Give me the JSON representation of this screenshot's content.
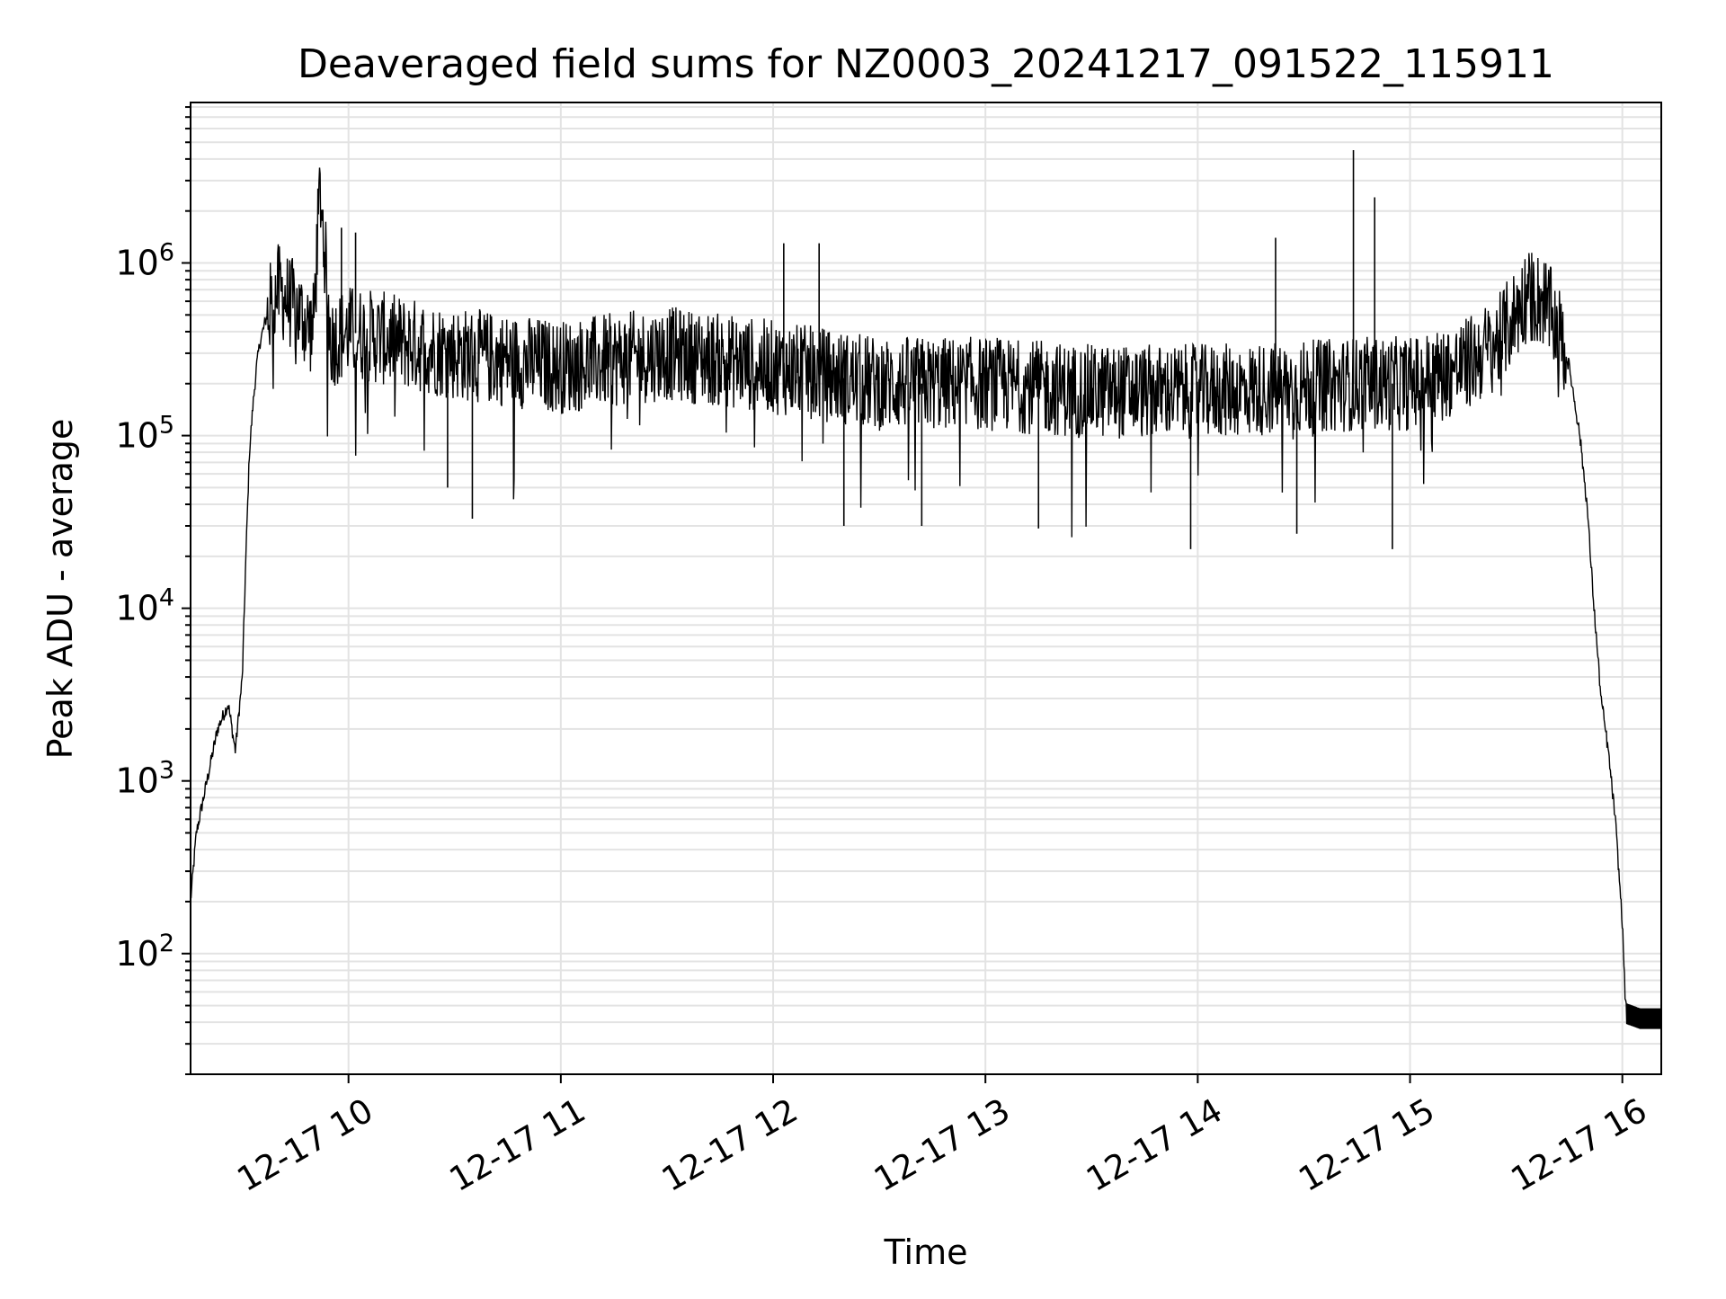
{
  "chart_data": {
    "type": "line",
    "title": "Deaveraged field sums for NZ0003_20241217_091522_115911",
    "xlabel": "Time",
    "ylabel": "Peak ADU - average",
    "x_ticks": [
      "12-17 10",
      "12-17 11",
      "12-17 12",
      "12-17 13",
      "12-17 14",
      "12-17 15",
      "12-17 16"
    ],
    "y_ticks": [
      {
        "base": "10",
        "exp": "2",
        "value": 100
      },
      {
        "base": "10",
        "exp": "3",
        "value": 1000
      },
      {
        "base": "10",
        "exp": "4",
        "value": 10000
      },
      {
        "base": "10",
        "exp": "5",
        "value": 100000
      },
      {
        "base": "10",
        "exp": "6",
        "value": 1000000
      }
    ],
    "y_scale": "log",
    "ylim": [
      20,
      8500000
    ],
    "xlim": [
      "2024-12-17 09:15:22",
      "2024-12-17 16:11:00"
    ],
    "grid": true,
    "line_color": "#000000",
    "series": [
      {
        "x": [
          "2024-12-17 09:15:22",
          "2024-12-17 09:17:00",
          "2024-12-17 09:20:00",
          "2024-12-17 09:23:00",
          "2024-12-17 09:26:00",
          "2024-12-17 09:28:00",
          "2024-12-17 09:30:00",
          "2024-12-17 09:31:00",
          "2024-12-17 09:32:00",
          "2024-12-17 09:33:00",
          "2024-12-17 09:34:00",
          "2024-12-17 09:35:00",
          "2024-12-17 09:37:00",
          "2024-12-17 09:40:00",
          "2024-12-17 09:45:00",
          "2024-12-17 09:50:00",
          "2024-12-17 09:52:00",
          "2024-12-17 09:55:00",
          "2024-12-17 10:00:00",
          "2024-12-17 10:30:00",
          "2024-12-17 11:00:00",
          "2024-12-17 11:30:00",
          "2024-12-17 12:00:00",
          "2024-12-17 12:30:00",
          "2024-12-17 13:00:00",
          "2024-12-17 13:30:00",
          "2024-12-17 14:00:00",
          "2024-12-17 14:30:00",
          "2024-12-17 14:45:00",
          "2024-12-17 15:00:00",
          "2024-12-17 15:15:00",
          "2024-12-17 15:25:00",
          "2024-12-17 15:33:00",
          "2024-12-17 15:38:00",
          "2024-12-17 15:42:00",
          "2024-12-17 15:45:00",
          "2024-12-17 15:48:00",
          "2024-12-17 15:50:00",
          "2024-12-17 15:52:00",
          "2024-12-17 15:54:00",
          "2024-12-17 15:56:00",
          "2024-12-17 15:58:00",
          "2024-12-17 16:00:00",
          "2024-12-17 16:01:00",
          "2024-12-17 16:05:00",
          "2024-12-17 16:11:00"
        ],
        "y": [
          200,
          500,
          1000,
          2000,
          2800,
          1500,
          4000,
          20000,
          80000,
          150000,
          250000,
          350000,
          500000,
          700000,
          550000,
          400000,
          2800000,
          350000,
          400000,
          300000,
          250000,
          300000,
          250000,
          200000,
          200000,
          180000,
          180000,
          190000,
          200000,
          200000,
          250000,
          350000,
          650000,
          600000,
          400000,
          250000,
          100000,
          40000,
          10000,
          3000,
          1500,
          600,
          150,
          45,
          42,
          42
        ]
      }
    ],
    "spikes": [
      {
        "x": "2024-12-17 09:52:00",
        "y": 2800000
      },
      {
        "x": "2024-12-17 09:58:00",
        "y": 1600000
      },
      {
        "x": "2024-12-17 10:02:00",
        "y": 1500000
      },
      {
        "x": "2024-12-17 12:03:00",
        "y": 1300000
      },
      {
        "x": "2024-12-17 12:13:00",
        "y": 1300000
      },
      {
        "x": "2024-12-17 14:22:00",
        "y": 1400000
      },
      {
        "x": "2024-12-17 14:44:00",
        "y": 4500000
      },
      {
        "x": "2024-12-17 14:50:00",
        "y": 2400000
      },
      {
        "x": "2024-12-17 10:28:00",
        "y": 50000
      },
      {
        "x": "2024-12-17 10:35:00",
        "y": 33000
      },
      {
        "x": "2024-12-17 12:20:00",
        "y": 30000
      },
      {
        "x": "2024-12-17 12:42:00",
        "y": 30000
      },
      {
        "x": "2024-12-17 13:15:00",
        "y": 29000
      },
      {
        "x": "2024-12-17 13:58:00",
        "y": 22000
      },
      {
        "x": "2024-12-17 14:28:00",
        "y": 27000
      },
      {
        "x": "2024-12-17 14:55:00",
        "y": 22000
      }
    ]
  }
}
